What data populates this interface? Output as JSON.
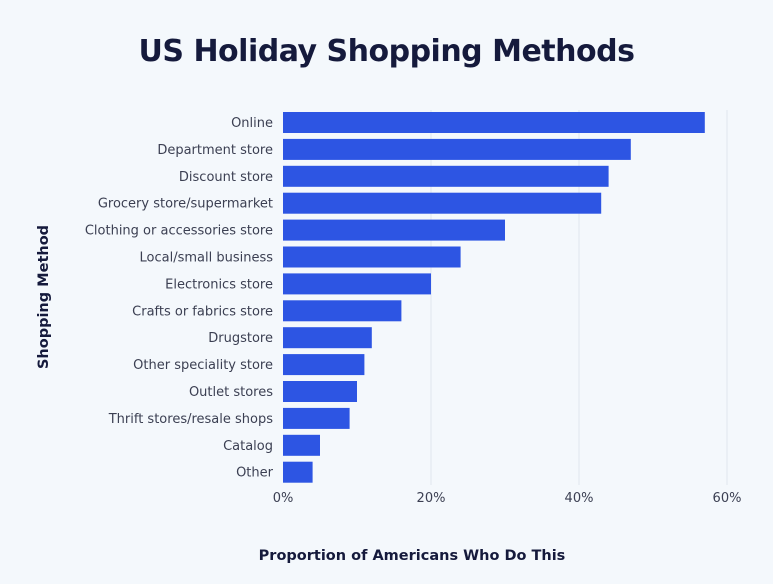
{
  "chart_data": {
    "type": "bar",
    "orientation": "horizontal",
    "title": "US Holiday Shopping Methods",
    "xlabel": "Proportion of Americans Who Do This",
    "ylabel": "Shopping Method",
    "categories": [
      "Online",
      "Department store",
      "Discount store",
      "Grocery store/supermarket",
      "Clothing or accessories store",
      "Local/small business",
      "Electronics store",
      "Crafts or fabrics store",
      "Drugstore",
      "Other speciality store",
      "Outlet stores",
      "Thrift stores/resale shops",
      "Catalog",
      "Other"
    ],
    "values": [
      57,
      47,
      44,
      43,
      30,
      24,
      20,
      16,
      12,
      11,
      10,
      9,
      5,
      4
    ],
    "xlim": [
      0,
      60
    ],
    "xticks": [
      0,
      20,
      40,
      60
    ],
    "xtick_labels": [
      "0%",
      "20%",
      "40%",
      "60%"
    ],
    "grid": "vertical",
    "bar_color": "#2d55e3"
  }
}
